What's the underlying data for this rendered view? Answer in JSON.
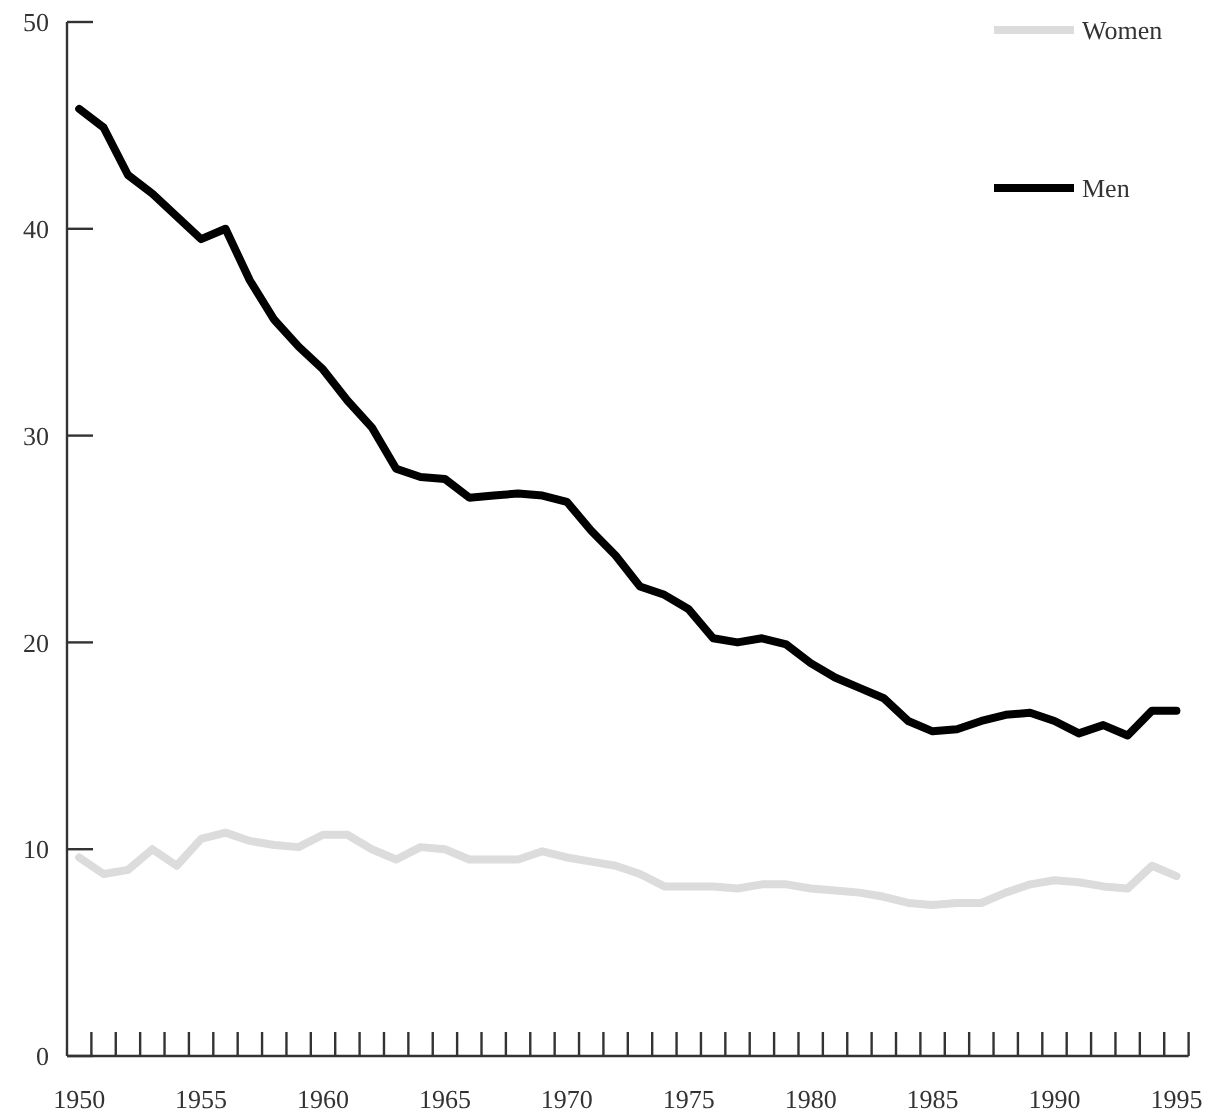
{
  "chart_data": {
    "type": "line",
    "x": [
      1950,
      1951,
      1952,
      1953,
      1954,
      1955,
      1956,
      1957,
      1958,
      1959,
      1960,
      1961,
      1962,
      1963,
      1964,
      1965,
      1966,
      1967,
      1968,
      1969,
      1970,
      1971,
      1972,
      1973,
      1974,
      1975,
      1976,
      1977,
      1978,
      1979,
      1980,
      1981,
      1982,
      1983,
      1984,
      1985,
      1986,
      1987,
      1988,
      1989,
      1990,
      1991,
      1992,
      1993,
      1994,
      1995
    ],
    "series": [
      {
        "name": "Women",
        "color": "#dcdcdc",
        "values": [
          9.6,
          8.8,
          9.0,
          10.0,
          9.2,
          10.5,
          10.8,
          10.4,
          10.2,
          10.1,
          10.7,
          10.7,
          10.0,
          9.5,
          10.1,
          10.0,
          9.5,
          9.5,
          9.5,
          9.9,
          9.6,
          9.4,
          9.2,
          8.8,
          8.2,
          8.2,
          8.2,
          8.1,
          8.3,
          8.3,
          8.1,
          8.0,
          7.9,
          7.7,
          7.4,
          7.3,
          7.4,
          7.4,
          7.9,
          8.3,
          8.5,
          8.4,
          8.2,
          8.1,
          9.2,
          8.7
        ]
      },
      {
        "name": "Men",
        "color": "#000000",
        "values": [
          45.8,
          44.9,
          42.6,
          41.7,
          40.6,
          39.5,
          40.0,
          37.5,
          35.6,
          34.3,
          33.2,
          31.7,
          30.4,
          28.4,
          28.0,
          27.9,
          27.0,
          27.1,
          27.2,
          27.1,
          26.8,
          25.4,
          24.2,
          22.7,
          22.3,
          21.6,
          20.2,
          20.0,
          20.2,
          19.9,
          19.0,
          18.3,
          17.8,
          17.3,
          16.2,
          15.7,
          15.8,
          16.2,
          16.5,
          16.6,
          16.2,
          15.6,
          16.0,
          15.5,
          16.7,
          16.7
        ]
      }
    ],
    "xlim": [
      1949.5,
      1995.5
    ],
    "xticks": [
      1950,
      1955,
      1960,
      1965,
      1970,
      1975,
      1980,
      1985,
      1990,
      1995,
      {
        "value": 1950.5,
        "label": null
      },
      {
        "value": 1951.5,
        "label": null
      },
      {
        "value": 1952.5,
        "label": null
      },
      {
        "value": 1953.5,
        "label": null
      },
      {
        "value": 1954.5,
        "label": null
      },
      {
        "value": 1955.5,
        "label": null
      },
      {
        "value": 1956.5,
        "label": null
      },
      {
        "value": 1957.5,
        "label": null
      },
      {
        "value": 1958.5,
        "label": null
      },
      {
        "value": 1959.5,
        "label": null
      },
      {
        "value": 1960.5,
        "label": null
      },
      {
        "value": 1961.5,
        "label": null
      },
      {
        "value": 1962.5,
        "label": null
      },
      {
        "value": 1963.5,
        "label": null
      },
      {
        "value": 1964.5,
        "label": null
      },
      {
        "value": 1965.5,
        "label": null
      },
      {
        "value": 1966.5,
        "label": null
      },
      {
        "value": 1967.5,
        "label": null
      },
      {
        "value": 1968.5,
        "label": null
      },
      {
        "value": 1969.5,
        "label": null
      },
      {
        "value": 1970.5,
        "label": null
      },
      {
        "value": 1971.5,
        "label": null
      },
      {
        "value": 1972.5,
        "label": null
      },
      {
        "value": 1973.5,
        "label": null
      },
      {
        "value": 1974.5,
        "label": null
      },
      {
        "value": 1975.5,
        "label": null
      },
      {
        "value": 1976.5,
        "label": null
      },
      {
        "value": 1977.5,
        "label": null
      },
      {
        "value": 1978.5,
        "label": null
      },
      {
        "value": 1979.5,
        "label": null
      },
      {
        "value": 1980.5,
        "label": null
      },
      {
        "value": 1981.5,
        "label": null
      },
      {
        "value": 1982.5,
        "label": null
      },
      {
        "value": 1983.5,
        "label": null
      },
      {
        "value": 1984.5,
        "label": null
      },
      {
        "value": 1985.5,
        "label": null
      },
      {
        "value": 1986.5,
        "label": null
      },
      {
        "value": 1987.5,
        "label": null
      },
      {
        "value": 1988.5,
        "label": null
      },
      {
        "value": 1989.5,
        "label": null
      },
      {
        "value": 1990.5,
        "label": null
      },
      {
        "value": 1991.5,
        "label": null
      },
      {
        "value": 1992.5,
        "label": null
      },
      {
        "value": 1993.5,
        "label": null
      },
      {
        "value": 1994.5,
        "label": null
      },
      {
        "value": 1995.5,
        "label": null
      }
    ],
    "ylim": [
      0,
      50
    ],
    "yticks": [
      0,
      10,
      20,
      30,
      40,
      50
    ],
    "legend": "top right",
    "line_style": "solid"
  }
}
